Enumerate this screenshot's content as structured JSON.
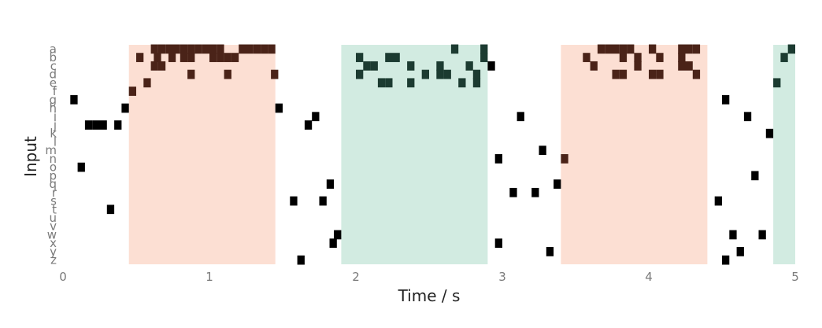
{
  "chart_data": {
    "type": "raster",
    "xlabel": "Time / s",
    "ylabel": "Input",
    "xlim": [
      0,
      5
    ],
    "xticks": [
      "0",
      "1",
      "2",
      "3",
      "4",
      "5"
    ],
    "grid": false,
    "channels": [
      "a",
      "b",
      "c",
      "d",
      "e",
      "f",
      "g",
      "h",
      "i",
      "j",
      "k",
      "l",
      "m",
      "n",
      "o",
      "p",
      "q",
      "r",
      "s",
      "t",
      "u",
      "v",
      "w",
      "x",
      "y",
      "z"
    ],
    "spike_duration": 0.05,
    "intervals": [
      {
        "start": 0.45,
        "end": 1.45,
        "color": "#fcdfd3"
      },
      {
        "start": 1.9,
        "end": 2.9,
        "color": "#d2ebe1"
      },
      {
        "start": 3.4,
        "end": 4.4,
        "color": "#fcdfd3"
      },
      {
        "start": 4.85,
        "end": 5.0,
        "color": "#d2ebe1"
      }
    ],
    "spike_colors": {
      "outside": "#000000",
      "warm": "#4a2318",
      "cool": "#1c3b31"
    },
    "spikes": [
      [
        "a",
        0.6
      ],
      [
        "a",
        0.65
      ],
      [
        "a",
        0.7
      ],
      [
        "a",
        0.75
      ],
      [
        "a",
        0.8
      ],
      [
        "a",
        0.85
      ],
      [
        "a",
        0.9
      ],
      [
        "a",
        0.95
      ],
      [
        "a",
        1.0
      ],
      [
        "a",
        1.05
      ],
      [
        "a",
        1.2
      ],
      [
        "a",
        1.25
      ],
      [
        "a",
        1.3
      ],
      [
        "a",
        1.35
      ],
      [
        "a",
        1.4
      ],
      [
        "a",
        2.65
      ],
      [
        "a",
        2.85
      ],
      [
        "a",
        3.65
      ],
      [
        "a",
        3.7
      ],
      [
        "a",
        3.75
      ],
      [
        "a",
        3.8
      ],
      [
        "a",
        3.85
      ],
      [
        "a",
        4.0
      ],
      [
        "a",
        4.2
      ],
      [
        "a",
        4.25
      ],
      [
        "a",
        4.3
      ],
      [
        "a",
        4.95
      ],
      [
        "b",
        0.5
      ],
      [
        "b",
        0.62
      ],
      [
        "b",
        0.72
      ],
      [
        "b",
        0.8
      ],
      [
        "b",
        0.85
      ],
      [
        "b",
        1.0
      ],
      [
        "b",
        1.1
      ],
      [
        "b",
        1.05
      ],
      [
        "b",
        1.15
      ],
      [
        "b",
        2.0
      ],
      [
        "b",
        2.2
      ],
      [
        "b",
        2.25
      ],
      [
        "b",
        2.85
      ],
      [
        "b",
        3.55
      ],
      [
        "b",
        3.8
      ],
      [
        "b",
        3.9
      ],
      [
        "b",
        4.05
      ],
      [
        "b",
        4.2
      ],
      [
        "b",
        4.9
      ],
      [
        "c",
        0.6
      ],
      [
        "c",
        0.65
      ],
      [
        "c",
        2.05
      ],
      [
        "c",
        2.1
      ],
      [
        "c",
        2.35
      ],
      [
        "c",
        2.55
      ],
      [
        "c",
        2.9
      ],
      [
        "c",
        2.75
      ],
      [
        "c",
        3.6
      ],
      [
        "c",
        3.9
      ],
      [
        "c",
        4.2
      ],
      [
        "c",
        4.25
      ],
      [
        "d",
        0.85
      ],
      [
        "d",
        1.1
      ],
      [
        "d",
        1.42
      ],
      [
        "d",
        2.0
      ],
      [
        "d",
        2.45
      ],
      [
        "d",
        2.55
      ],
      [
        "d",
        2.6
      ],
      [
        "d",
        2.8
      ],
      [
        "d",
        3.75
      ],
      [
        "d",
        3.8
      ],
      [
        "d",
        4.0
      ],
      [
        "d",
        4.05
      ],
      [
        "d",
        4.3
      ],
      [
        "e",
        0.55
      ],
      [
        "e",
        2.15
      ],
      [
        "e",
        2.2
      ],
      [
        "e",
        2.35
      ],
      [
        "e",
        2.7
      ],
      [
        "e",
        2.8
      ],
      [
        "e",
        4.85
      ],
      [
        "f",
        0.45
      ],
      [
        "g",
        0.05
      ],
      [
        "g",
        4.5
      ],
      [
        "h",
        0.4
      ],
      [
        "h",
        1.45
      ],
      [
        "i",
        1.7
      ],
      [
        "i",
        3.1
      ],
      [
        "i",
        4.65
      ],
      [
        "j",
        0.15
      ],
      [
        "j",
        0.2
      ],
      [
        "j",
        0.25
      ],
      [
        "j",
        0.35
      ],
      [
        "j",
        1.65
      ],
      [
        "k",
        4.8
      ],
      [
        "m",
        3.25
      ],
      [
        "n",
        2.95
      ],
      [
        "n",
        3.4
      ],
      [
        "o",
        0.1
      ],
      [
        "p",
        4.7
      ],
      [
        "q",
        1.8
      ],
      [
        "q",
        3.35
      ],
      [
        "r",
        3.05
      ],
      [
        "r",
        3.2
      ],
      [
        "s",
        1.55
      ],
      [
        "s",
        1.75
      ],
      [
        "s",
        4.45
      ],
      [
        "t",
        0.3
      ],
      [
        "w",
        1.85
      ],
      [
        "w",
        4.55
      ],
      [
        "w",
        4.75
      ],
      [
        "x",
        1.82
      ],
      [
        "x",
        2.95
      ],
      [
        "y",
        3.3
      ],
      [
        "y",
        4.6
      ],
      [
        "z",
        1.6
      ],
      [
        "z",
        4.5
      ]
    ]
  }
}
